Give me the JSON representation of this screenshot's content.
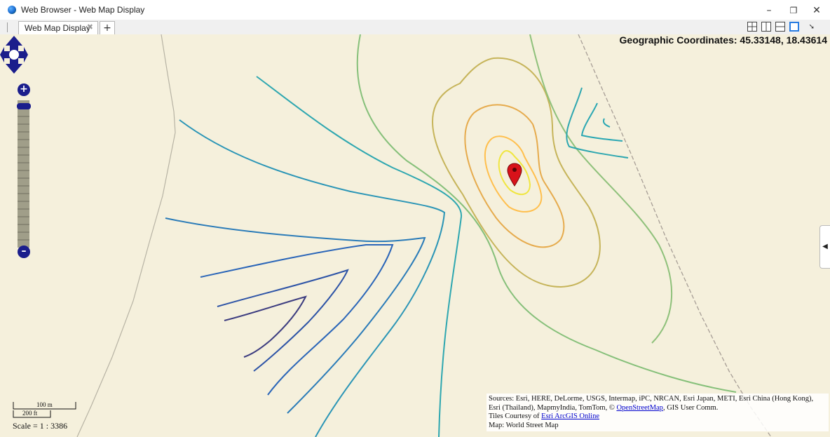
{
  "window": {
    "title": "Web Browser - Web Map Display",
    "controls": [
      "–",
      "❐",
      "✕"
    ]
  },
  "tabs": [
    {
      "label": "Web Map Display",
      "close": "✖"
    }
  ],
  "tab_add_label": "+",
  "map": {
    "coordinates_label": "Geographic Coordinates: 45.33148, 18.43614",
    "zoom_in_label": "+",
    "zoom_out_label": "–",
    "side_toggle_label": "◀",
    "scale": {
      "metric": "100 m",
      "imperial": "200 ft",
      "ratio_text": "Scale = 1 : 3386"
    },
    "attribution": {
      "sources_prefix": "Sources: Esri, HERE, DeLorme, USGS, Intermap, iPC, NRCAN, Esri Japan, METI, Esri China (Hong Kong), Esri (Thailand), MapmyIndia, TomTom, © ",
      "osm_link": "OpenStreetMap",
      "sources_suffix": ", GIS User Comm.",
      "tiles_prefix": "Tiles Courtesy of ",
      "tiles_link": "Esri ArcGIS Online",
      "map_line": "Map: World Street Map"
    },
    "contour_colors": {
      "center": "#f0e640",
      "inner": "#ffbf4d",
      "mid": "#e6ab4d",
      "outer": "#b9b85a",
      "green": "#86c07a",
      "teal": "#2aa7b3",
      "blue": "#2a65b8",
      "navy": "#3d3d80"
    }
  }
}
